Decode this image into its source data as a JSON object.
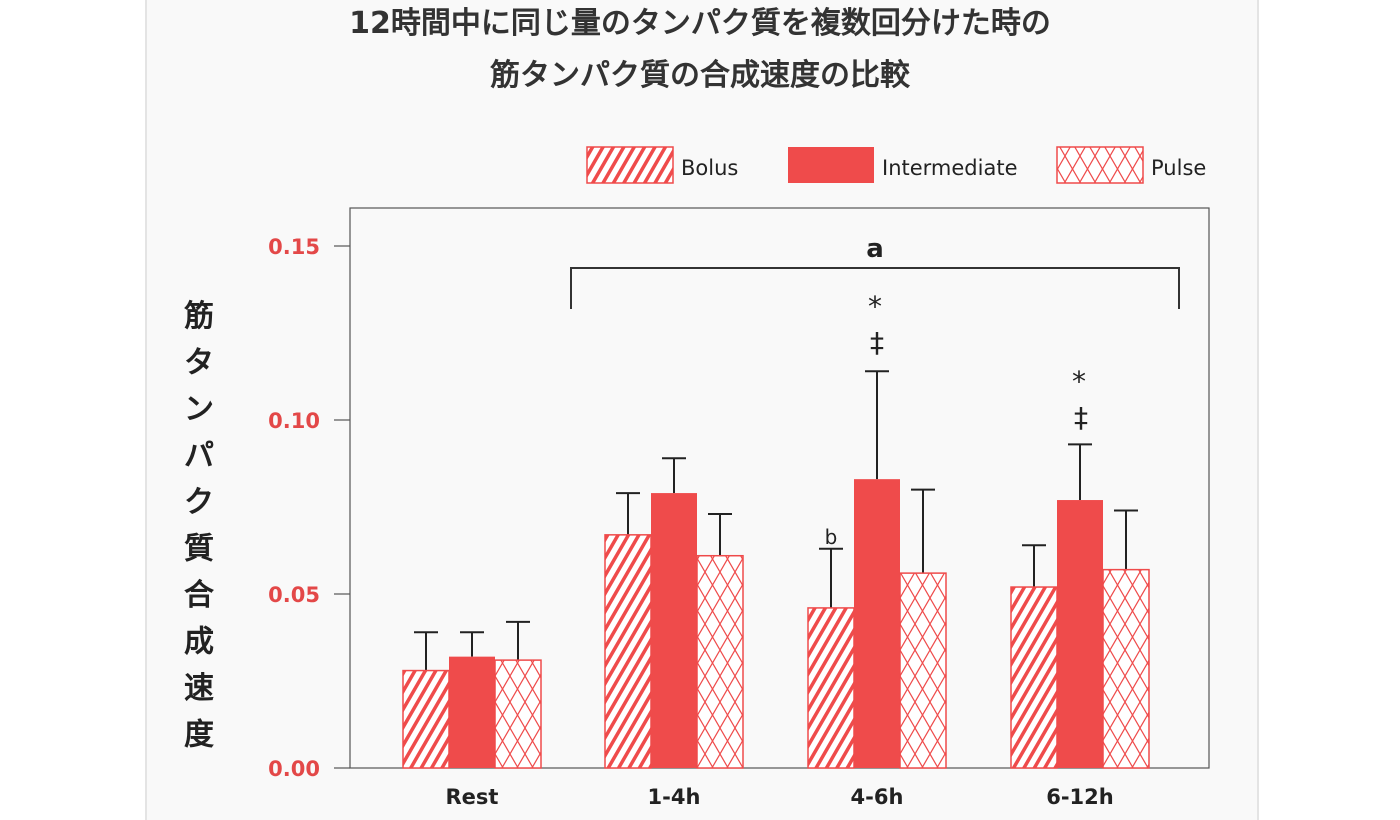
{
  "chart_data": {
    "type": "bar",
    "title_lines": [
      "12時間中に同じ量のタンパク質を複数回分けた時の",
      "筋タンパク質の合成速度の比較"
    ],
    "xlabel": "",
    "ylabel": "筋タンパク質合成速度",
    "ylim": [
      0,
      0.16
    ],
    "yticks": [
      "0.00",
      "0.05",
      "0.10",
      "0.15"
    ],
    "ytick_values": [
      0,
      0.05,
      0.1,
      0.15
    ],
    "categories": [
      "Rest",
      "1-4h",
      "4-6h",
      "6-12h"
    ],
    "series": [
      {
        "name": "Bolus",
        "pattern": "diagonal-hatch",
        "values": [
          0.028,
          0.067,
          0.046,
          0.052
        ],
        "errors": [
          0.011,
          0.012,
          0.017,
          0.012
        ]
      },
      {
        "name": "Intermediate",
        "pattern": "solid",
        "values": [
          0.032,
          0.079,
          0.083,
          0.077
        ],
        "errors": [
          0.007,
          0.01,
          0.031,
          0.016
        ]
      },
      {
        "name": "Pulse",
        "pattern": "cross-hatch",
        "values": [
          0.031,
          0.061,
          0.056,
          0.057
        ],
        "errors": [
          0.011,
          0.012,
          0.024,
          0.017
        ]
      }
    ],
    "legend_position": "top-right",
    "grid": false,
    "annotations": {
      "bracket_label": "a",
      "bracket_from_category": "1-4h",
      "bracket_to_category": "6-12h",
      "b_label": "b",
      "star": "*",
      "dagger": "‡"
    },
    "colors": {
      "bar": "#ef4b4b",
      "tick": "#e34848",
      "text": "#222222",
      "axis": "#555555"
    }
  }
}
